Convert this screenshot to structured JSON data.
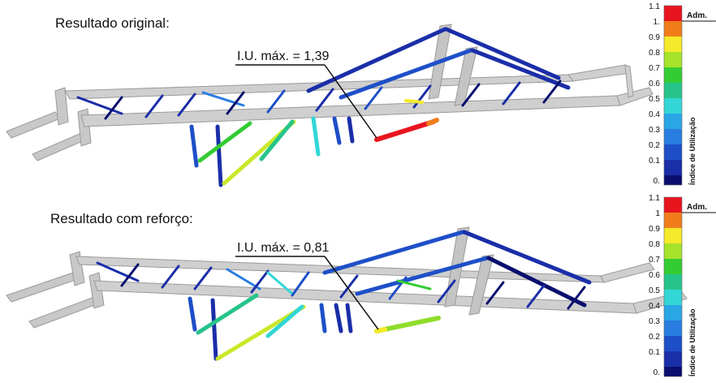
{
  "panels": [
    {
      "title": "Resultado original:",
      "callout": "I.U. máx. = 1,39",
      "scale": {
        "title": "Índice de Utilização",
        "adm_label": "Adm.",
        "ticks": [
          "1.1",
          "1.",
          "0.9",
          "0.8",
          "0.7",
          "0.6",
          "0.5",
          "0.4",
          "0.3",
          "0.2",
          "0.1",
          "0."
        ]
      }
    },
    {
      "title": "Resultado com reforço:",
      "callout": "I.U. máx. = 0,81",
      "scale": {
        "title": "Índice de Utilização",
        "adm_label": "Adm.",
        "ticks": [
          "1.1",
          "1",
          "0.9",
          "0.8",
          "0.7",
          "0.6",
          "0.5",
          "0.4",
          "0.3",
          "0.2",
          "0.1",
          "0."
        ]
      }
    }
  ],
  "colors": {
    "bands_top_to_bottom": [
      "#e8141e",
      "#f07d1a",
      "#f5ea2a",
      "#a6e32a",
      "#33cc33",
      "#26c48a",
      "#33d6d6",
      "#2aa6e6",
      "#2a7de0",
      "#1e4fc8",
      "#1a2ea8",
      "#0a0f6e"
    ],
    "frame": "#c8c8c8",
    "frame_edge": "#9a9a9a"
  }
}
